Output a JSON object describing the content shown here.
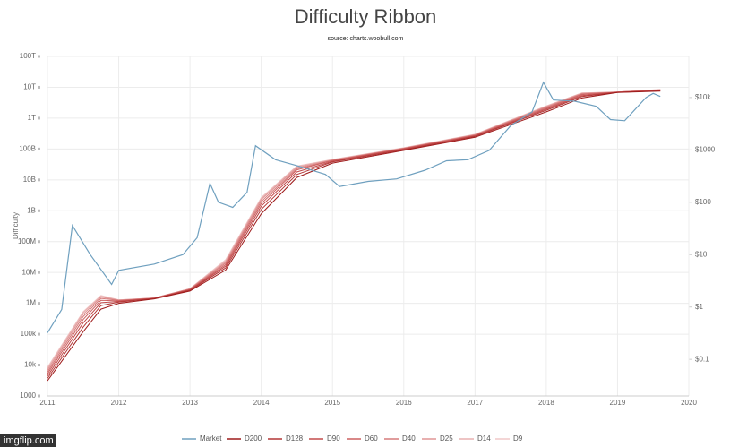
{
  "chart_data": {
    "type": "line",
    "title": "Difficulty Ribbon",
    "subtitle": "source: charts.woobull.com",
    "ylabel": "Difficulty",
    "watermark": "imgflip.com",
    "log_y": true,
    "log_y2": true,
    "grid": true,
    "legend": "bottom",
    "xlim": [
      2011,
      2020
    ],
    "xticks": [
      2011,
      2012,
      2013,
      2014,
      2015,
      2016,
      2017,
      2018,
      2019,
      2020
    ],
    "ylim": [
      1000,
      100000000000000
    ],
    "yticks": [
      {
        "value": 1000,
        "label": "1000"
      },
      {
        "value": 10000,
        "label": "10k"
      },
      {
        "value": 100000,
        "label": "100k"
      },
      {
        "value": 1000000,
        "label": "1M"
      },
      {
        "value": 10000000,
        "label": "10M"
      },
      {
        "value": 100000000,
        "label": "100M"
      },
      {
        "value": 1000000000,
        "label": "1B"
      },
      {
        "value": 10000000000,
        "label": "10B"
      },
      {
        "value": 100000000000,
        "label": "100B"
      },
      {
        "value": 1000000000000,
        "label": "1T"
      },
      {
        "value": 10000000000000,
        "label": "10T"
      },
      {
        "value": 100000000000000,
        "label": "100T"
      }
    ],
    "y2lim": [
      0.02,
      61000
    ],
    "y2ticks": [
      {
        "value": 0.1,
        "label": "$0.1"
      },
      {
        "value": 1,
        "label": "$1"
      },
      {
        "value": 10,
        "label": "$10"
      },
      {
        "value": 100,
        "label": "$100"
      },
      {
        "value": 1000,
        "label": "$1000"
      },
      {
        "value": 10000,
        "label": "$10k"
      }
    ],
    "series": [
      {
        "name": "Market",
        "color": "#6fa0bf",
        "axis": "y2",
        "x": [
          2011,
          2011.2,
          2011.35,
          2011.6,
          2011.9,
          2012,
          2012.5,
          2012.9,
          2013.1,
          2013.28,
          2013.4,
          2013.6,
          2013.8,
          2013.92,
          2014.2,
          2014.5,
          2014.9,
          2015.1,
          2015.5,
          2015.9,
          2016.3,
          2016.6,
          2016.9,
          2017.2,
          2017.5,
          2017.8,
          2017.96,
          2018.1,
          2018.4,
          2018.7,
          2018.9,
          2019.1,
          2019.4,
          2019.5,
          2019.6
        ],
        "values": [
          0.32,
          0.9,
          36,
          10,
          2.7,
          5,
          6.6,
          10,
          21,
          230,
          100,
          80,
          155,
          1200,
          650,
          500,
          340,
          200,
          250,
          280,
          410,
          620,
          650,
          980,
          2900,
          5300,
          19500,
          9000,
          8500,
          6800,
          3800,
          3600,
          10000,
          12000,
          10500
        ]
      },
      {
        "name": "D200",
        "color": "#9e1b1b",
        "x": [
          2011,
          2011.5,
          2011.75,
          2012,
          2012.5,
          2013,
          2013.5,
          2014,
          2014.5,
          2015,
          2016,
          2017,
          2018,
          2018.5,
          2019,
          2019.6
        ],
        "values": [
          3100,
          120000,
          650000,
          1000000,
          1400000,
          2500000,
          12000000,
          800000000,
          12000000000,
          35000000000,
          90000000000,
          240000000000,
          1600000000000,
          4500000000000,
          6800000000000,
          7500000000000
        ]
      },
      {
        "name": "D128",
        "color": "#b33636",
        "x": [
          2011,
          2011.5,
          2011.75,
          2012,
          2012.5,
          2013,
          2013.5,
          2014,
          2014.5,
          2015,
          2016,
          2017,
          2018,
          2018.5,
          2019,
          2019.6
        ],
        "values": [
          3700,
          170000,
          850000,
          1100000,
          1450000,
          2650000,
          14000000,
          1100000000,
          15000000000,
          38000000000,
          95000000000,
          255000000000,
          1800000000000,
          5000000000000,
          6850000000000,
          7700000000000
        ]
      },
      {
        "name": "D90",
        "color": "#c24a4a",
        "x": [
          2011,
          2011.5,
          2011.75,
          2012,
          2012.5,
          2013,
          2013.5,
          2014,
          2014.5,
          2015,
          2016,
          2017,
          2018,
          2018.5,
          2019,
          2019.6
        ],
        "values": [
          4400,
          230000,
          1050000,
          1150000,
          1450000,
          2750000,
          16000000,
          1400000000,
          18000000000,
          40000000000,
          100000000000,
          265000000000,
          1950000000000,
          5400000000000,
          6900000000000,
          7900000000000
        ]
      },
      {
        "name": "D60",
        "color": "#cc6060",
        "x": [
          2011,
          2011.5,
          2011.75,
          2012,
          2012.5,
          2013,
          2013.5,
          2014,
          2014.5,
          2015,
          2016,
          2017,
          2018,
          2018.5,
          2019,
          2019.6
        ],
        "values": [
          5200,
          300000,
          1250000,
          1200000,
          1480000,
          2800000,
          18000000,
          1700000000,
          21000000000,
          42000000000,
          103000000000,
          275000000000,
          2100000000000,
          5800000000000,
          6950000000000,
          8100000000000
        ]
      },
      {
        "name": "D40",
        "color": "#d67a7a",
        "x": [
          2011,
          2011.5,
          2011.75,
          2012,
          2012.5,
          2013,
          2013.5,
          2014,
          2014.5,
          2015,
          2016,
          2017,
          2018,
          2018.5,
          2019,
          2019.6
        ],
        "values": [
          6000,
          370000,
          1450000,
          1250000,
          1490000,
          2900000,
          20000000,
          2000000000,
          23000000000,
          43000000000,
          105000000000,
          283000000000,
          2250000000000,
          6100000000000,
          6980000000000,
          8250000000000
        ]
      },
      {
        "name": "D25",
        "color": "#e09595",
        "x": [
          2011,
          2011.5,
          2011.75,
          2012,
          2012.5,
          2013,
          2013.5,
          2014,
          2014.5,
          2015,
          2016,
          2017,
          2018,
          2018.5,
          2019,
          2019.6
        ],
        "values": [
          6900,
          440000,
          1600000,
          1270000,
          1500000,
          2950000,
          22000000,
          2300000000,
          25000000000,
          44000000000,
          107000000000,
          290000000000,
          2350000000000,
          6300000000000,
          6990000000000,
          8350000000000
        ]
      },
      {
        "name": "D14",
        "color": "#e8b0b0",
        "x": [
          2011,
          2011.5,
          2011.75,
          2012,
          2012.5,
          2013,
          2013.5,
          2014,
          2014.5,
          2015,
          2016,
          2017,
          2018,
          2018.5,
          2019,
          2019.6
        ],
        "values": [
          7700,
          500000,
          1700000,
          1290000,
          1500000,
          2980000,
          24000000,
          2500000000,
          27000000000,
          45000000000,
          108000000000,
          295000000000,
          2430000000000,
          6500000000000,
          7000000000000,
          8450000000000
        ]
      },
      {
        "name": "D9",
        "color": "#f0c8c8",
        "x": [
          2011,
          2011.5,
          2011.75,
          2012,
          2012.5,
          2013,
          2013.5,
          2014,
          2014.5,
          2015,
          2016,
          2017,
          2018,
          2018.5,
          2019,
          2019.6
        ],
        "values": [
          8500,
          540000,
          1800000,
          1300000,
          1500000,
          3000000,
          26000000,
          2700000000,
          28000000000,
          46000000000,
          110000000000,
          300000000000,
          2500000000000,
          6600000000000,
          7000000000000,
          8500000000000
        ]
      }
    ]
  }
}
